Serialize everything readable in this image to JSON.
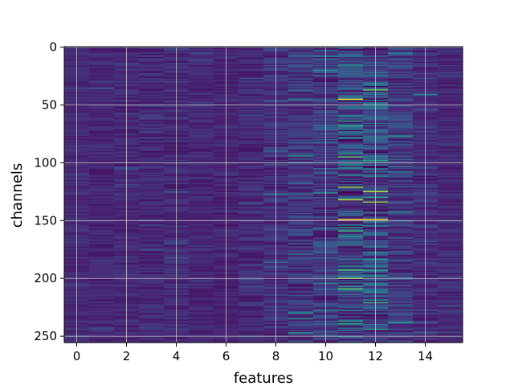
{
  "chart_data": {
    "type": "heatmap",
    "title": "",
    "xlabel": "features",
    "ylabel": "channels",
    "xlim": [
      -0.5,
      15.5
    ],
    "ylim": [
      255.5,
      -0.5
    ],
    "y_inverted": true,
    "n_columns": 16,
    "n_rows": 256,
    "colormap": "viridis",
    "grid": true,
    "grid_color": "#c8c8c8",
    "x_ticks": [
      0,
      2,
      4,
      6,
      8,
      10,
      12,
      14
    ],
    "x_tick_labels": [
      "0",
      "2",
      "4",
      "6",
      "8",
      "10",
      "12",
      "14"
    ],
    "y_ticks": [
      0,
      50,
      100,
      150,
      200,
      250
    ],
    "y_tick_labels": [
      "0",
      "50",
      "100",
      "150",
      "200",
      "250"
    ],
    "column_bias": [
      0.12,
      0.11,
      0.12,
      0.12,
      0.12,
      0.11,
      0.1,
      0.12,
      0.14,
      0.16,
      0.18,
      0.22,
      0.22,
      0.17,
      0.13,
      0.12
    ],
    "column_noise": [
      0.05,
      0.06,
      0.06,
      0.07,
      0.07,
      0.05,
      0.05,
      0.07,
      0.09,
      0.11,
      0.14,
      0.22,
      0.22,
      0.13,
      0.08,
      0.06
    ],
    "highlights": [
      {
        "col": 11,
        "row": 45,
        "value": 1.0
      },
      {
        "col": 11,
        "row": 64,
        "value": 0.62
      },
      {
        "col": 11,
        "row": 92,
        "value": 0.55
      },
      {
        "col": 11,
        "row": 149,
        "value": 1.0
      },
      {
        "col": 11,
        "row": 156,
        "value": 0.6
      },
      {
        "col": 11,
        "row": 193,
        "value": 0.7
      },
      {
        "col": 11,
        "row": 207,
        "value": 0.55
      },
      {
        "col": 11,
        "row": 237,
        "value": 0.55
      },
      {
        "col": 12,
        "row": 98,
        "value": 0.6
      },
      {
        "col": 12,
        "row": 125,
        "value": 0.92
      },
      {
        "col": 12,
        "row": 134,
        "value": 0.85
      },
      {
        "col": 12,
        "row": 149,
        "value": 1.0
      },
      {
        "col": 12,
        "row": 184,
        "value": 0.55
      },
      {
        "col": 12,
        "row": 193,
        "value": 0.6
      },
      {
        "col": 12,
        "row": 244,
        "value": 0.62
      },
      {
        "col": 13,
        "row": 5,
        "value": 0.5
      },
      {
        "col": 13,
        "row": 142,
        "value": 0.5
      },
      {
        "col": 13,
        "row": 238,
        "value": 0.55
      },
      {
        "col": 14,
        "row": 41,
        "value": 0.45
      },
      {
        "col": 8,
        "row": 127,
        "value": 0.45
      },
      {
        "col": 9,
        "row": 247,
        "value": 0.45
      },
      {
        "col": 10,
        "row": 8,
        "value": 0.45
      },
      {
        "col": 10,
        "row": 228,
        "value": 0.42
      }
    ]
  }
}
